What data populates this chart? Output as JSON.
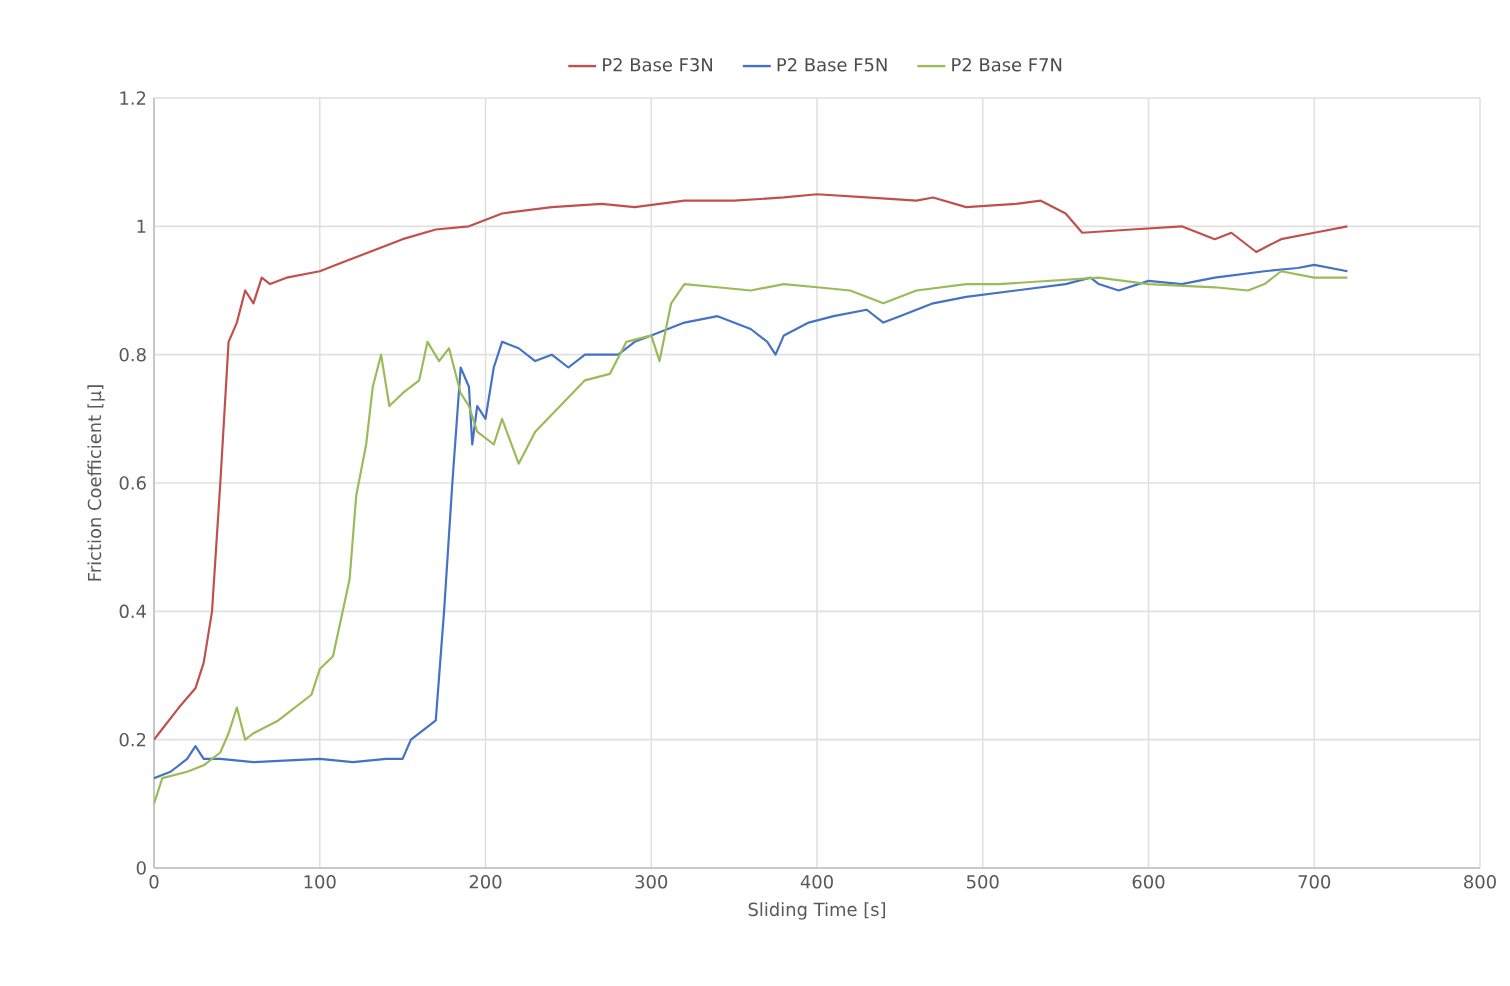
{
  "chart_data": {
    "type": "line",
    "xlabel": "Sliding Time [s]",
    "ylabel": "Friction Coefficient [µ]",
    "xlim": [
      0,
      800
    ],
    "xticks": [
      0,
      100,
      200,
      300,
      400,
      500,
      600,
      700,
      800
    ],
    "ylim": [
      0,
      1.2
    ],
    "yticks": [
      0,
      0.2,
      0.4,
      0.6,
      0.8,
      1,
      1.2
    ],
    "grid": true,
    "legend": "top",
    "marker": "none",
    "line_style": "solid",
    "series": [
      {
        "name": "P2 Base F3N",
        "color": "#c0504d",
        "x": [
          0,
          3,
          15,
          25,
          30,
          35,
          40,
          45,
          50,
          55,
          60,
          65,
          70,
          80,
          100,
          110,
          130,
          150,
          170,
          190,
          210,
          240,
          270,
          290,
          320,
          350,
          380,
          400,
          430,
          460,
          470,
          490,
          520,
          535,
          550,
          560,
          590,
          620,
          640,
          650,
          665,
          680,
          700,
          720
        ],
        "values": [
          0.2,
          0.21,
          0.25,
          0.28,
          0.32,
          0.4,
          0.6,
          0.82,
          0.85,
          0.9,
          0.88,
          0.92,
          0.91,
          0.92,
          0.93,
          0.94,
          0.96,
          0.98,
          0.995,
          1.0,
          1.02,
          1.03,
          1.035,
          1.03,
          1.04,
          1.04,
          1.045,
          1.05,
          1.045,
          1.04,
          1.045,
          1.03,
          1.035,
          1.04,
          1.02,
          0.99,
          0.995,
          1.0,
          0.98,
          0.99,
          0.96,
          0.98,
          0.99,
          1.0
        ]
      },
      {
        "name": "P2 Base F5N",
        "color": "#4472c4",
        "x": [
          0,
          10,
          20,
          25,
          30,
          40,
          60,
          100,
          120,
          140,
          150,
          155,
          165,
          170,
          175,
          180,
          185,
          190,
          192,
          195,
          200,
          205,
          210,
          220,
          230,
          240,
          250,
          260,
          280,
          290,
          300,
          320,
          340,
          360,
          370,
          375,
          380,
          395,
          410,
          430,
          440,
          450,
          470,
          490,
          520,
          550,
          565,
          570,
          582,
          600,
          620,
          640,
          670,
          690,
          700,
          720
        ],
        "values": [
          0.14,
          0.15,
          0.17,
          0.19,
          0.17,
          0.17,
          0.165,
          0.17,
          0.165,
          0.17,
          0.17,
          0.2,
          0.22,
          0.23,
          0.4,
          0.6,
          0.78,
          0.75,
          0.66,
          0.72,
          0.7,
          0.78,
          0.82,
          0.81,
          0.79,
          0.8,
          0.78,
          0.8,
          0.8,
          0.82,
          0.83,
          0.85,
          0.86,
          0.84,
          0.82,
          0.8,
          0.83,
          0.85,
          0.86,
          0.87,
          0.85,
          0.86,
          0.88,
          0.89,
          0.9,
          0.91,
          0.92,
          0.91,
          0.9,
          0.915,
          0.91,
          0.92,
          0.93,
          0.935,
          0.94,
          0.93
        ]
      },
      {
        "name": "P2 Base F7N",
        "color": "#9bbb59",
        "x": [
          0,
          5,
          20,
          30,
          40,
          45,
          50,
          55,
          60,
          75,
          95,
          100,
          108,
          118,
          122,
          128,
          132,
          137,
          142,
          150,
          160,
          165,
          172,
          178,
          185,
          190,
          195,
          205,
          210,
          220,
          230,
          245,
          260,
          275,
          285,
          300,
          305,
          312,
          320,
          340,
          360,
          380,
          400,
          420,
          440,
          460,
          490,
          510,
          540,
          570,
          600,
          640,
          660,
          670,
          680,
          700,
          720
        ],
        "values": [
          0.1,
          0.14,
          0.15,
          0.16,
          0.18,
          0.21,
          0.25,
          0.2,
          0.21,
          0.23,
          0.27,
          0.31,
          0.33,
          0.45,
          0.58,
          0.66,
          0.75,
          0.8,
          0.72,
          0.74,
          0.76,
          0.82,
          0.79,
          0.81,
          0.74,
          0.72,
          0.68,
          0.66,
          0.7,
          0.63,
          0.68,
          0.72,
          0.76,
          0.77,
          0.82,
          0.83,
          0.79,
          0.88,
          0.91,
          0.905,
          0.9,
          0.91,
          0.905,
          0.9,
          0.88,
          0.9,
          0.91,
          0.91,
          0.915,
          0.92,
          0.91,
          0.905,
          0.9,
          0.91,
          0.93,
          0.92,
          0.92
        ]
      }
    ]
  }
}
